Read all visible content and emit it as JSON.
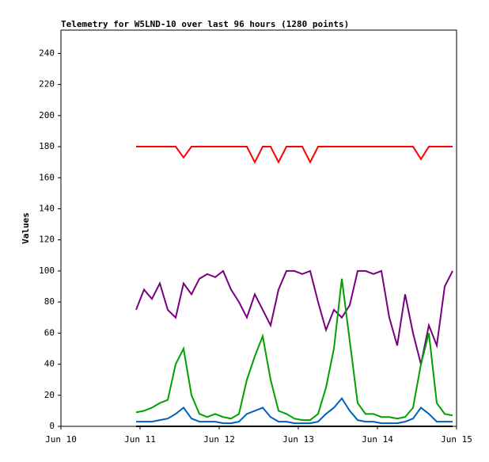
{
  "chart_data": {
    "type": "line",
    "title": "Telemetry for W5LND-10 over last 96 hours (1280 points)",
    "ylabel": "Values",
    "x": [
      0.95,
      1.05,
      1.15,
      1.25,
      1.35,
      1.45,
      1.55,
      1.65,
      1.75,
      1.85,
      1.95,
      2.05,
      2.15,
      2.25,
      2.35,
      2.45,
      2.55,
      2.65,
      2.75,
      2.85,
      2.95,
      3.05,
      3.15,
      3.25,
      3.35,
      3.45,
      3.55,
      3.65,
      3.75,
      3.85,
      3.95,
      4.05,
      4.15,
      4.25,
      4.35,
      4.45,
      4.55,
      4.65,
      4.75,
      4.85,
      4.95
    ],
    "series": [
      {
        "color": "#ff0000",
        "values": [
          180,
          180,
          180,
          180,
          180,
          180,
          173,
          180,
          180,
          180,
          180,
          180,
          180,
          180,
          180,
          170,
          180,
          180,
          170,
          180,
          180,
          180,
          170,
          180,
          180,
          180,
          180,
          180,
          180,
          180,
          180,
          180,
          180,
          180,
          180,
          180,
          172,
          180,
          180,
          180,
          180
        ]
      },
      {
        "color": "#77007f",
        "values": [
          75,
          88,
          82,
          92,
          75,
          70,
          92,
          85,
          95,
          98,
          96,
          100,
          88,
          80,
          70,
          85,
          75,
          65,
          88,
          100,
          100,
          98,
          100,
          80,
          62,
          75,
          70,
          78,
          100,
          100,
          98,
          100,
          70,
          52,
          85,
          60,
          40,
          65,
          52,
          90,
          100
        ]
      },
      {
        "color": "#00a000",
        "values": [
          9,
          10,
          12,
          15,
          17,
          40,
          50,
          20,
          8,
          6,
          8,
          6,
          5,
          8,
          30,
          45,
          58,
          30,
          10,
          8,
          5,
          4,
          4,
          8,
          25,
          50,
          95,
          55,
          15,
          8,
          8,
          6,
          6,
          5,
          6,
          12,
          40,
          60,
          15,
          8,
          7
        ]
      },
      {
        "color": "#0060c0",
        "values": [
          3,
          3,
          3,
          4,
          5,
          8,
          12,
          5,
          3,
          3,
          3,
          2,
          2,
          3,
          8,
          10,
          12,
          6,
          3,
          3,
          2,
          2,
          2,
          3,
          8,
          12,
          18,
          10,
          4,
          3,
          3,
          2,
          2,
          2,
          3,
          5,
          12,
          8,
          3,
          3,
          3
        ]
      },
      {
        "color": "#000000",
        "values": [
          0,
          0,
          0,
          0,
          0,
          0,
          0,
          0,
          0,
          0,
          0,
          0,
          0,
          0,
          0,
          0,
          0,
          0,
          0,
          0,
          0,
          0,
          0,
          0,
          0,
          0,
          0,
          0,
          0,
          0,
          0,
          0,
          0,
          0,
          0,
          0,
          0,
          0,
          0,
          0,
          0
        ]
      }
    ],
    "xlim": [
      0,
      5
    ],
    "xticks": [
      {
        "value": 0,
        "label": "Jun 10"
      },
      {
        "value": 1,
        "label": "Jun 11"
      },
      {
        "value": 2,
        "label": "Jun 12"
      },
      {
        "value": 3,
        "label": "Jun 13"
      },
      {
        "value": 4,
        "label": "Jun 14"
      },
      {
        "value": 5,
        "label": "Jun 15"
      }
    ],
    "ylim": [
      0,
      255
    ],
    "yticks": [
      0,
      20,
      40,
      60,
      80,
      100,
      120,
      140,
      160,
      180,
      200,
      220,
      240
    ]
  }
}
